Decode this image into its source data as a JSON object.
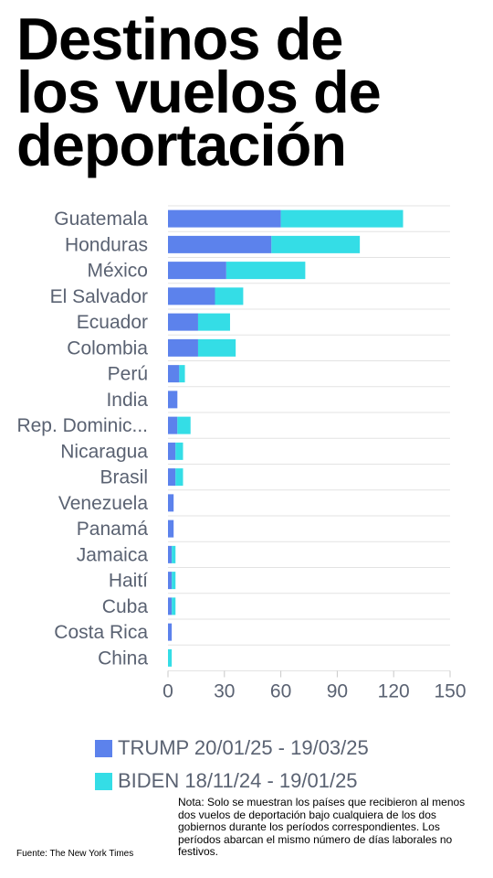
{
  "title_lines": [
    "Destinos de",
    "los vuelos de",
    "deportación"
  ],
  "chart_data": {
    "type": "bar",
    "orientation": "horizontal",
    "stacked": true,
    "categories": [
      "Guatemala",
      "Honduras",
      "México",
      "El Salvador",
      "Ecuador",
      "Colombia",
      "Perú",
      "India",
      "Rep. Dominic...",
      "Nicaragua",
      "Brasil",
      "Venezuela",
      "Panamá",
      "Jamaica",
      "Haití",
      "Cuba",
      "Costa Rica",
      "China"
    ],
    "series": [
      {
        "name": "TRUMP 20/01/25 - 19/03/25",
        "color": "#5c82ec",
        "values": [
          60,
          55,
          31,
          25,
          16,
          16,
          6,
          5,
          5,
          4,
          4,
          3,
          3,
          2,
          2,
          2,
          2,
          0
        ]
      },
      {
        "name": "BIDEN 18/11/24 - 19/01/25",
        "color": "#34dde6",
        "values": [
          65,
          47,
          42,
          15,
          17,
          20,
          3,
          0,
          7,
          4,
          4,
          0,
          0,
          2,
          2,
          2,
          0,
          2
        ]
      }
    ],
    "xlim": [
      0,
      150
    ],
    "xticks": [
      "0",
      "30",
      "60",
      "90",
      "120",
      "150"
    ],
    "grid": true,
    "legend_position": "bottom"
  },
  "note": "Nota: Solo se muestran los países que recibieron al menos dos vuelos de deportación bajo cualquiera de los dos gobiernos durante los períodos correspondientes. Los períodos abarcan el mismo número de días laborales no festivos.",
  "source": "Fuente: The New York Times"
}
